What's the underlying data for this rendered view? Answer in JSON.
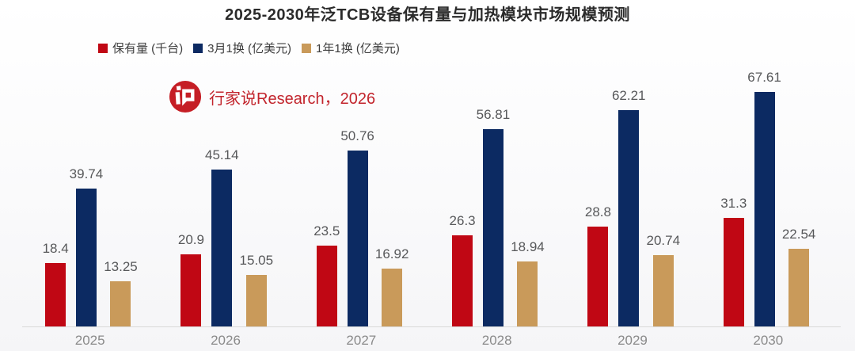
{
  "title": "2025-2030年泛TCB设备保有量与加热模块市场规模预测",
  "watermark": {
    "text": "行家说Research，2026",
    "text_color": "#c2242c",
    "logo_color": "#c51e25"
  },
  "colors": {
    "axis_line": "#d9d9d9",
    "value_label": "#57585a",
    "year_label": "#8a8a8a"
  },
  "chart_data": {
    "type": "bar",
    "title": "2025-2030年泛TCB设备保有量与加热模块市场规模预测",
    "categories": [
      "2025",
      "2026",
      "2027",
      "2028",
      "2029",
      "2030"
    ],
    "series": [
      {
        "key": "installed-base",
        "name": "保有量 (千台)",
        "color": "#c00714",
        "values": [
          18.4,
          20.9,
          23.5,
          26.3,
          28.8,
          31.3
        ]
      },
      {
        "key": "replace-every-3-months",
        "name": "3月1换 (亿美元)",
        "color": "#0c2a62",
        "values": [
          39.74,
          45.14,
          50.76,
          56.81,
          62.21,
          67.61
        ]
      },
      {
        "key": "replace-every-1-year",
        "name": "1年1换 (亿美元)",
        "color": "#c99a5a",
        "values": [
          13.25,
          15.05,
          16.92,
          18.94,
          20.74,
          22.54
        ]
      }
    ],
    "xlabel": "",
    "ylabel": "",
    "ylim": [
      0,
      70
    ],
    "grid": false,
    "data_labels": true,
    "legend_position": "top-left"
  }
}
